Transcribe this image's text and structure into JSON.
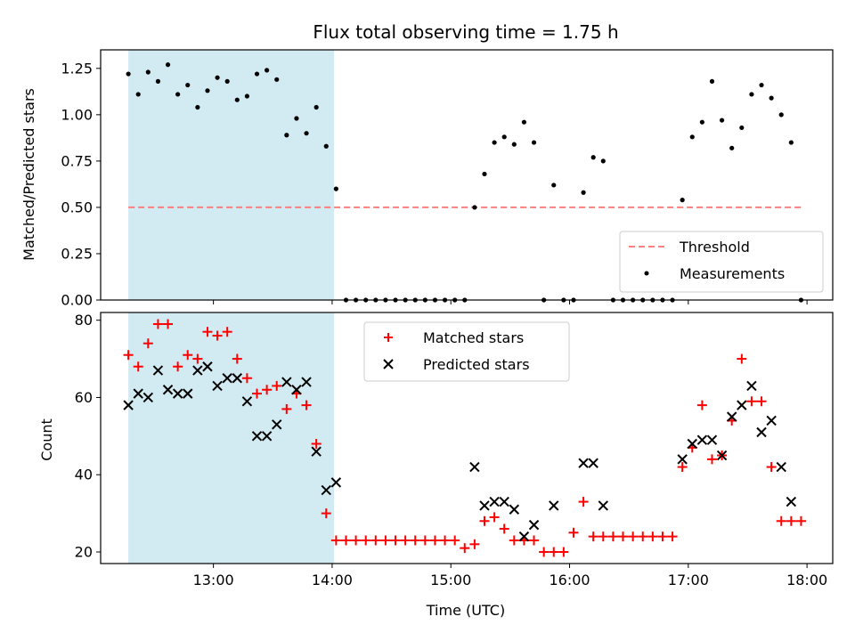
{
  "chart_data": [
    {
      "type": "scatter",
      "title": "Flux total observing time = 1.75 h",
      "xlabel": "",
      "ylabel": "Matched/Predicted stars",
      "xlim": [
        "12:03",
        "18:13"
      ],
      "ylim": [
        0,
        1.35
      ],
      "yticks": [
        "0.00",
        "0.25",
        "0.50",
        "0.75",
        "1.00",
        "1.25"
      ],
      "xticks": [
        "13:00",
        "14:00",
        "15:00",
        "16:00",
        "17:00",
        "18:00"
      ],
      "shaded_interval": {
        "start": "12:17",
        "end": "14:01",
        "color": "#add8e6"
      },
      "legend_position": "lower-right",
      "legend": [
        {
          "label": "Threshold",
          "marker": "dashed-line",
          "color": "#ff7f7f"
        },
        {
          "label": "Measurements",
          "marker": "dot",
          "color": "#000000"
        }
      ],
      "series": [
        {
          "name": "Threshold",
          "style": "dashed-line",
          "color": "#ff7f7f",
          "x": [
            "12:17",
            "17:57"
          ],
          "y": [
            0.5,
            0.5
          ]
        },
        {
          "name": "Measurements",
          "style": "dot",
          "color": "#000000",
          "x": [
            "12:17",
            "12:22",
            "12:27",
            "12:32",
            "12:37",
            "12:42",
            "12:47",
            "12:52",
            "12:57",
            "13:02",
            "13:07",
            "13:12",
            "13:17",
            "13:22",
            "13:27",
            "13:32",
            "13:37",
            "13:42",
            "13:47",
            "13:52",
            "13:57",
            "14:02",
            "14:07",
            "14:12",
            "14:17",
            "14:22",
            "14:27",
            "14:32",
            "14:37",
            "14:42",
            "14:47",
            "14:52",
            "14:57",
            "15:02",
            "15:07",
            "15:12",
            "15:17",
            "15:22",
            "15:27",
            "15:32",
            "15:37",
            "15:42",
            "15:47",
            "15:52",
            "15:57",
            "16:02",
            "16:07",
            "16:12",
            "16:17",
            "16:22",
            "16:27",
            "16:32",
            "16:37",
            "16:42",
            "16:47",
            "16:52",
            "16:57",
            "17:02",
            "17:07",
            "17:12",
            "17:17",
            "17:22",
            "17:27",
            "17:32",
            "17:37",
            "17:42",
            "17:47",
            "17:52",
            "17:57"
          ],
          "y": [
            1.22,
            1.11,
            1.23,
            1.18,
            1.27,
            1.11,
            1.16,
            1.04,
            1.13,
            1.2,
            1.18,
            1.08,
            1.1,
            1.22,
            1.24,
            1.19,
            0.89,
            0.98,
            0.9,
            1.04,
            0.83,
            0.6,
            0.0,
            0.0,
            0.0,
            0.0,
            0.0,
            0.0,
            0.0,
            0.0,
            0.0,
            0.0,
            0.0,
            0.0,
            0.0,
            0.5,
            0.68,
            0.85,
            0.88,
            0.84,
            0.96,
            0.85,
            0.0,
            0.62,
            0.0,
            0.0,
            0.58,
            0.77,
            0.75,
            0.0,
            0.0,
            0.0,
            0.0,
            0.0,
            0.0,
            0.0,
            0.54,
            0.88,
            0.96,
            1.18,
            0.97,
            0.82,
            0.93,
            1.11,
            1.16,
            1.09,
            1.0,
            0.85,
            0.0
          ]
        }
      ]
    },
    {
      "type": "scatter",
      "title": "",
      "xlabel": "Time (UTC)",
      "ylabel": "Count",
      "xlim": [
        "12:03",
        "18:13"
      ],
      "ylim": [
        17,
        82
      ],
      "yticks": [
        "20",
        "40",
        "60",
        "80"
      ],
      "xticks": [
        "13:00",
        "14:00",
        "15:00",
        "16:00",
        "17:00",
        "18:00"
      ],
      "shaded_interval": {
        "start": "12:17",
        "end": "14:01",
        "color": "#add8e6"
      },
      "legend_position": "upper-center",
      "legend": [
        {
          "label": "Matched stars",
          "marker": "plus",
          "color": "#ff0000"
        },
        {
          "label": "Predicted stars",
          "marker": "x",
          "color": "#000000"
        }
      ],
      "series": [
        {
          "name": "Matched stars",
          "style": "plus",
          "color": "#ff0000",
          "x": [
            "12:17",
            "12:22",
            "12:27",
            "12:32",
            "12:37",
            "12:42",
            "12:47",
            "12:52",
            "12:57",
            "13:02",
            "13:07",
            "13:12",
            "13:17",
            "13:22",
            "13:27",
            "13:32",
            "13:37",
            "13:42",
            "13:47",
            "13:52",
            "13:57",
            "14:02",
            "14:07",
            "14:12",
            "14:17",
            "14:22",
            "14:27",
            "14:32",
            "14:37",
            "14:42",
            "14:47",
            "14:52",
            "14:57",
            "15:02",
            "15:07",
            "15:12",
            "15:17",
            "15:22",
            "15:27",
            "15:32",
            "15:37",
            "15:42",
            "15:47",
            "15:52",
            "15:57",
            "16:02",
            "16:07",
            "16:12",
            "16:17",
            "16:22",
            "16:27",
            "16:32",
            "16:37",
            "16:42",
            "16:47",
            "16:52",
            "16:57",
            "17:02",
            "17:07",
            "17:12",
            "17:17",
            "17:22",
            "17:27",
            "17:32",
            "17:37",
            "17:42",
            "17:47",
            "17:52",
            "17:57"
          ],
          "y": [
            71,
            68,
            74,
            79,
            79,
            68,
            71,
            70,
            77,
            76,
            77,
            70,
            65,
            61,
            62,
            63,
            57,
            61,
            58,
            48,
            30,
            23,
            23,
            23,
            23,
            23,
            23,
            23,
            23,
            23,
            23,
            23,
            23,
            23,
            21,
            22,
            28,
            29,
            26,
            23,
            23,
            23,
            20,
            20,
            20,
            25,
            33,
            24,
            24,
            24,
            24,
            24,
            24,
            24,
            24,
            24,
            42,
            47,
            58,
            44,
            45,
            54,
            70,
            59,
            59,
            42,
            28,
            28,
            28
          ]
        },
        {
          "name": "Predicted stars",
          "style": "x",
          "color": "#000000",
          "x": [
            "12:17",
            "12:22",
            "12:27",
            "12:32",
            "12:37",
            "12:42",
            "12:47",
            "12:52",
            "12:57",
            "13:02",
            "13:07",
            "13:12",
            "13:17",
            "13:22",
            "13:27",
            "13:32",
            "13:37",
            "13:42",
            "13:47",
            "13:52",
            "13:57",
            "14:02",
            "15:12",
            "15:17",
            "15:22",
            "15:27",
            "15:32",
            "15:37",
            "15:42",
            "15:52",
            "16:07",
            "16:12",
            "16:17",
            "16:57",
            "17:02",
            "17:07",
            "17:12",
            "17:17",
            "17:22",
            "17:27",
            "17:32",
            "17:37",
            "17:42",
            "17:47",
            "17:52"
          ],
          "y": [
            58,
            61,
            60,
            67,
            62,
            61,
            61,
            67,
            68,
            63,
            65,
            65,
            59,
            50,
            50,
            53,
            64,
            62,
            64,
            46,
            36,
            38,
            42,
            32,
            33,
            33,
            31,
            24,
            27,
            32,
            43,
            43,
            32,
            44,
            48,
            49,
            49,
            45,
            55,
            58,
            63,
            51,
            54,
            42,
            33
          ]
        }
      ]
    }
  ]
}
